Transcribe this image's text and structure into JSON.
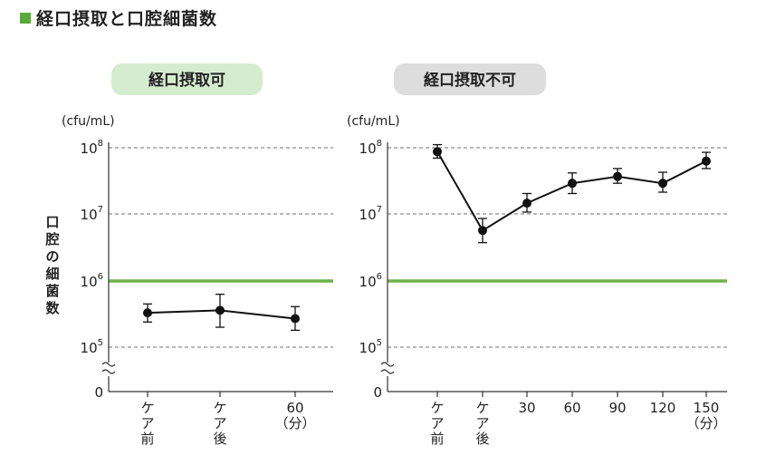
{
  "title": "経口摂取と口腔細菌数",
  "colors": {
    "threshold_line": "#6fb24a",
    "panel1_badge": "#d6eccf",
    "panel2_badge": "#dddddd",
    "series": "#111111",
    "title_square": "#5aaa3a"
  },
  "ylabel": "口腔の細菌数",
  "chart_data": [
    {
      "type": "line",
      "panel_title": "経口摂取可",
      "unit": "(cfu/mL)",
      "y_scale": "log10 with axis break",
      "y_ticks": [
        {
          "base": "10",
          "exp": "5",
          "value": 100000
        },
        {
          "base": "10",
          "exp": "6",
          "value": 1000000
        },
        {
          "base": "10",
          "exp": "7",
          "value": 10000000
        },
        {
          "base": "10",
          "exp": "8",
          "value": 100000000
        }
      ],
      "y_zero_label": "0",
      "threshold": 1000000,
      "grid": "dashed at 10^5, 10^7, 10^8",
      "x_tick_labels": [
        "ケア前",
        "ケア後",
        "60（分）"
      ],
      "x_tick_lines": [
        [
          "ケ",
          "ア",
          "前"
        ],
        [
          "ケ",
          "ア",
          "後"
        ],
        [
          "60",
          "（分）"
        ]
      ],
      "x": [
        "ケア前",
        "ケア後",
        "60"
      ],
      "values": [
        330000,
        360000,
        270000
      ],
      "error_low": [
        240000,
        200000,
        180000
      ],
      "error_high": [
        450000,
        630000,
        410000
      ]
    },
    {
      "type": "line",
      "panel_title": "経口摂取不可",
      "unit": "(cfu/mL)",
      "y_scale": "log10 with axis break",
      "y_ticks": [
        {
          "base": "10",
          "exp": "5",
          "value": 100000
        },
        {
          "base": "10",
          "exp": "6",
          "value": 1000000
        },
        {
          "base": "10",
          "exp": "7",
          "value": 10000000
        },
        {
          "base": "10",
          "exp": "8",
          "value": 100000000
        }
      ],
      "y_zero_label": "0",
      "threshold": 1000000,
      "grid": "dashed at 10^5, 10^7, 10^8",
      "x_tick_labels": [
        "ケア前",
        "ケア後",
        "30",
        "60",
        "90",
        "120",
        "150（分）"
      ],
      "x_tick_lines": [
        [
          "ケ",
          "ア",
          "前"
        ],
        [
          "ケ",
          "ア",
          "後"
        ],
        [
          "30"
        ],
        [
          "60"
        ],
        [
          "90"
        ],
        [
          "120"
        ],
        [
          "150",
          "（分）"
        ]
      ],
      "x": [
        "ケア前",
        "ケア後",
        "30",
        "60",
        "90",
        "120",
        "150"
      ],
      "values": [
        90000000,
        5800000,
        15000000,
        30000000,
        38000000,
        30000000,
        65000000
      ],
      "error_low": [
        72000000,
        3800000,
        11000000,
        21000000,
        30000000,
        22000000,
        50000000
      ],
      "error_high": [
        115000000,
        8800000,
        21000000,
        43000000,
        50000000,
        44000000,
        88000000
      ]
    }
  ]
}
